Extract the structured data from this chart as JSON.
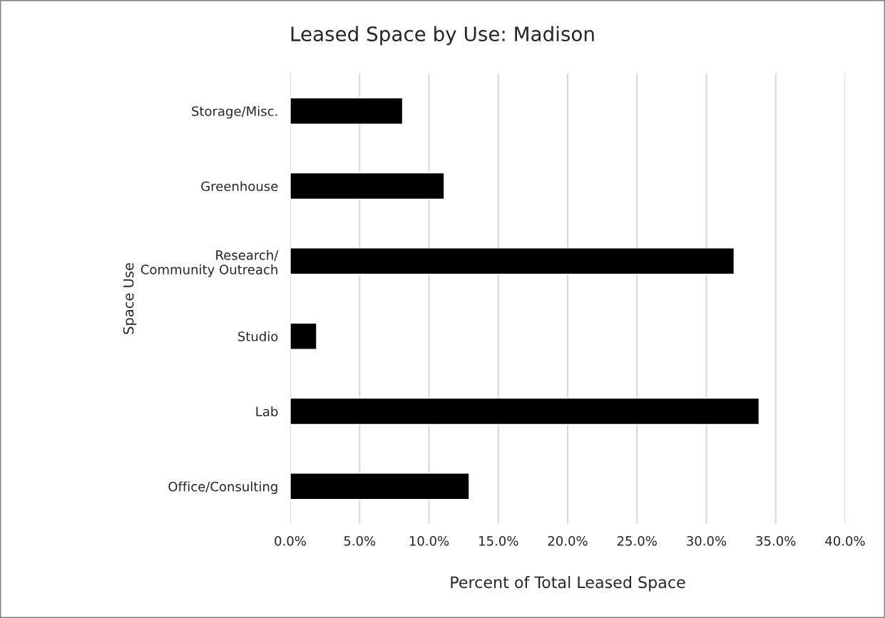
{
  "chart_data": {
    "type": "bar",
    "orientation": "horizontal",
    "title": "Leased Space by Use: Madison",
    "xlabel": "Percent of Total Leased Space",
    "ylabel": "Space Use",
    "categories": [
      "Storage/Misc.",
      "Greenhouse",
      "Research/\nCommunity Outreach",
      "Studio",
      "Lab",
      "Office/Consulting"
    ],
    "values": [
      8.1,
      11.1,
      32.0,
      1.9,
      33.8,
      12.9
    ],
    "color": "#000000",
    "xlim": [
      0,
      40
    ],
    "xticks": [
      {
        "value": 0,
        "label": "0.0%"
      },
      {
        "value": 5,
        "label": "5.0%"
      },
      {
        "value": 10,
        "label": "10.0%"
      },
      {
        "value": 15,
        "label": "15.0%"
      },
      {
        "value": 20,
        "label": "20.0%"
      },
      {
        "value": 25,
        "label": "25.0%"
      },
      {
        "value": 30,
        "label": "30.0%"
      },
      {
        "value": 35,
        "label": "35.0%"
      },
      {
        "value": 40,
        "label": "40.0%"
      }
    ],
    "grid": "x",
    "legend": false
  }
}
